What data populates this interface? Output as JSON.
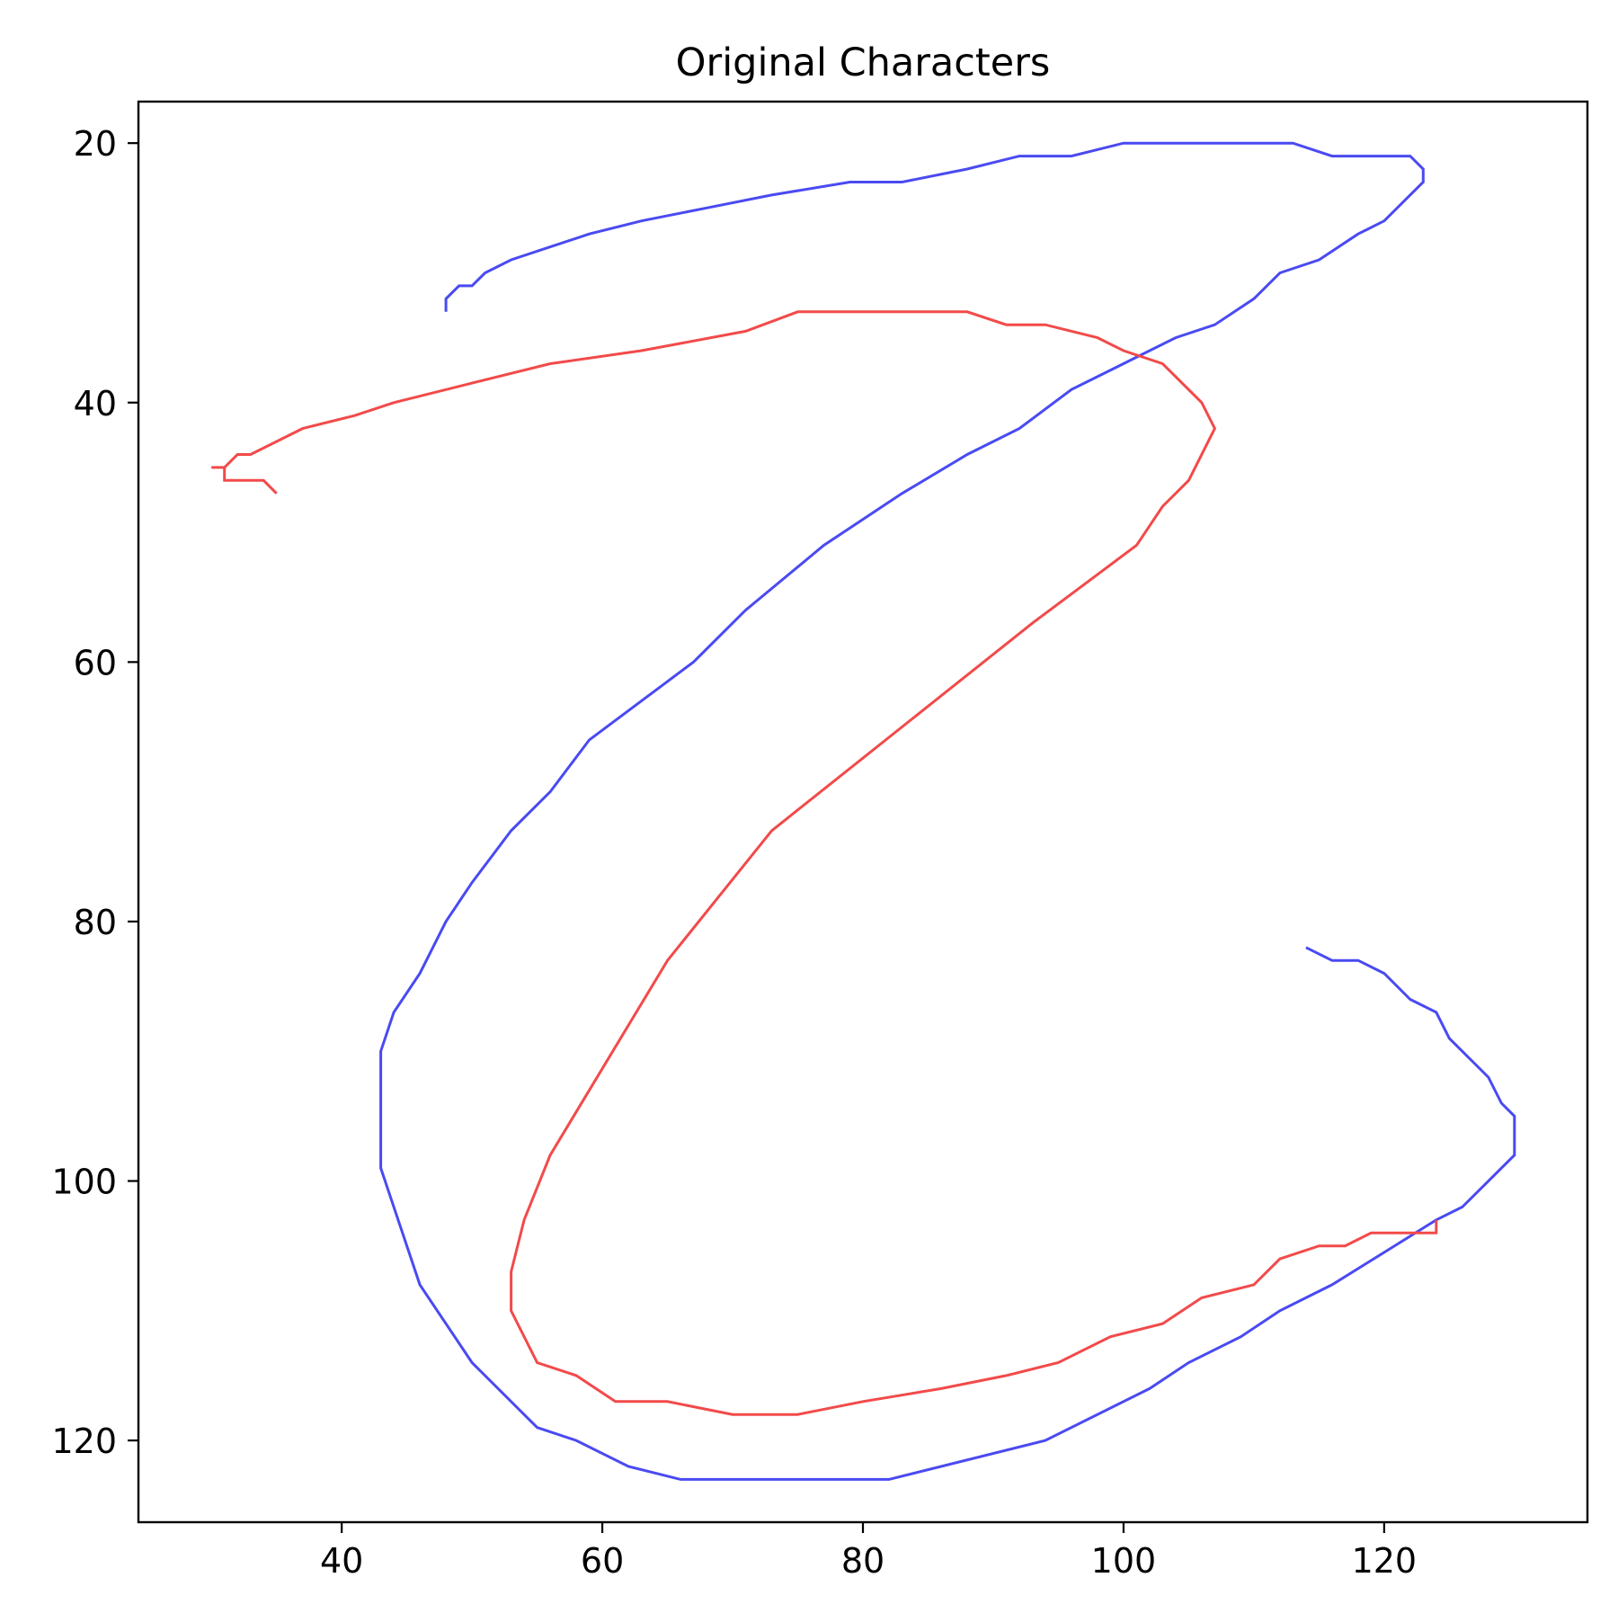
{
  "chart_data": {
    "type": "line",
    "title": "Original Characters",
    "xlabel": "",
    "ylabel": "",
    "xlim": [
      24.4,
      135.6
    ],
    "ylim": [
      126.3,
      16.8
    ],
    "y_inverted": true,
    "grid": false,
    "legend": "none",
    "x_ticks": [
      40,
      60,
      80,
      100,
      120
    ],
    "y_ticks": [
      20,
      40,
      60,
      80,
      100,
      120
    ],
    "series": [
      {
        "color": "#4a4af2",
        "points": [
          [
            48,
            33
          ],
          [
            48,
            32
          ],
          [
            49,
            31
          ],
          [
            50,
            31
          ],
          [
            51,
            30
          ],
          [
            53,
            29
          ],
          [
            56,
            28
          ],
          [
            59,
            27
          ],
          [
            63,
            26
          ],
          [
            68,
            25
          ],
          [
            73,
            24
          ],
          [
            79,
            23
          ],
          [
            83,
            23
          ],
          [
            88,
            22
          ],
          [
            92,
            21
          ],
          [
            96,
            21
          ],
          [
            100,
            20
          ],
          [
            104,
            20
          ],
          [
            108,
            20
          ],
          [
            113,
            20
          ],
          [
            116,
            21
          ],
          [
            122,
            21
          ],
          [
            123,
            22
          ],
          [
            123,
            23
          ],
          [
            120,
            26
          ],
          [
            118,
            27
          ],
          [
            115,
            29
          ],
          [
            112,
            30
          ],
          [
            110,
            32
          ],
          [
            107,
            34
          ],
          [
            104,
            35
          ],
          [
            100,
            37
          ],
          [
            96,
            39
          ],
          [
            92,
            42
          ],
          [
            88,
            44
          ],
          [
            83,
            47
          ],
          [
            77,
            51
          ],
          [
            71,
            56
          ],
          [
            67,
            60
          ],
          [
            63,
            63
          ],
          [
            59,
            66
          ],
          [
            56,
            70
          ],
          [
            53,
            73
          ],
          [
            50,
            77
          ],
          [
            48,
            80
          ],
          [
            46,
            84
          ],
          [
            44,
            87
          ],
          [
            43,
            90
          ],
          [
            43,
            95
          ],
          [
            43,
            99
          ],
          [
            46,
            108
          ],
          [
            50,
            114
          ],
          [
            55,
            119
          ],
          [
            58,
            120
          ],
          [
            62,
            122
          ],
          [
            66,
            123
          ],
          [
            75,
            123
          ],
          [
            82,
            123
          ],
          [
            94,
            120
          ],
          [
            102,
            116
          ],
          [
            105,
            114
          ],
          [
            109,
            112
          ],
          [
            112,
            110
          ],
          [
            116,
            108
          ],
          [
            120,
            105.5
          ],
          [
            124,
            103
          ],
          [
            126,
            102
          ],
          [
            130,
            98
          ],
          [
            130,
            95
          ],
          [
            129,
            94
          ],
          [
            128,
            92
          ],
          [
            125,
            89
          ],
          [
            124,
            87
          ],
          [
            122,
            86
          ],
          [
            120,
            84
          ],
          [
            118,
            83
          ],
          [
            116,
            83
          ],
          [
            114,
            82
          ]
        ]
      },
      {
        "color": "#f24a4a",
        "points": [
          [
            35,
            47
          ],
          [
            34,
            46
          ],
          [
            31,
            46
          ],
          [
            31,
            45
          ],
          [
            30,
            45
          ],
          [
            31,
            45
          ],
          [
            32,
            44
          ],
          [
            33,
            44
          ],
          [
            37,
            42
          ],
          [
            41,
            41
          ],
          [
            44,
            40
          ],
          [
            50,
            38.5
          ],
          [
            56,
            37
          ],
          [
            63,
            36
          ],
          [
            71,
            34.5
          ],
          [
            75,
            33
          ],
          [
            88,
            33
          ],
          [
            91,
            34
          ],
          [
            94,
            34
          ],
          [
            98,
            35
          ],
          [
            100,
            36
          ],
          [
            103,
            37
          ],
          [
            106,
            40
          ],
          [
            107,
            42
          ],
          [
            105,
            46
          ],
          [
            103,
            48
          ],
          [
            101,
            51
          ],
          [
            93,
            57
          ],
          [
            88,
            61
          ],
          [
            73,
            73
          ],
          [
            65,
            83
          ],
          [
            56,
            98
          ],
          [
            54,
            103
          ],
          [
            53,
            107
          ],
          [
            53,
            110
          ],
          [
            55,
            114
          ],
          [
            58,
            115
          ],
          [
            61,
            117
          ],
          [
            65,
            117
          ],
          [
            70,
            118
          ],
          [
            75,
            118
          ],
          [
            80,
            117
          ],
          [
            86,
            116
          ],
          [
            91,
            115
          ],
          [
            95,
            114
          ],
          [
            99,
            112
          ],
          [
            103,
            111
          ],
          [
            106,
            109
          ],
          [
            110,
            108
          ],
          [
            112,
            106
          ],
          [
            115,
            105
          ],
          [
            117,
            105
          ],
          [
            119,
            104
          ],
          [
            124,
            104
          ],
          [
            124,
            103
          ]
        ]
      }
    ]
  }
}
